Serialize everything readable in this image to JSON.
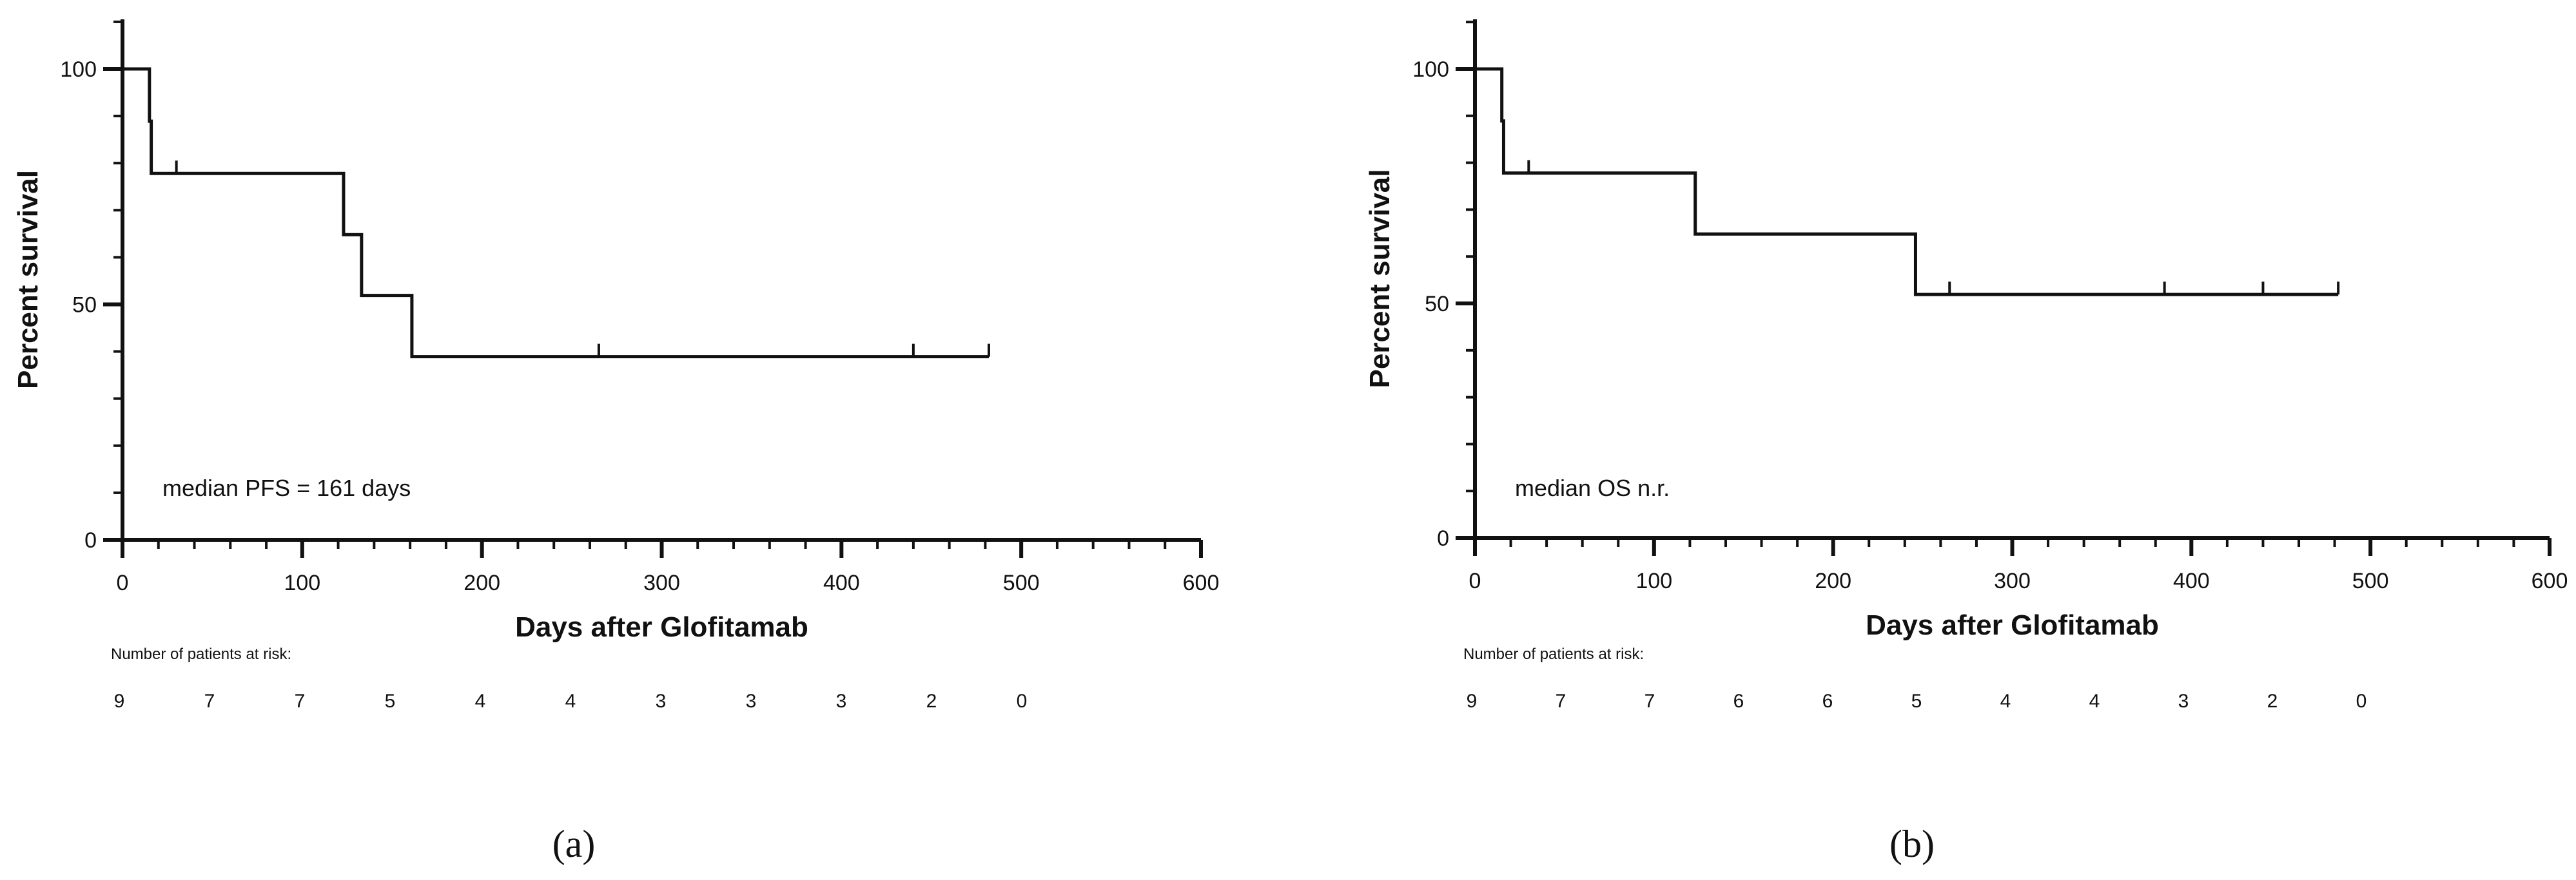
{
  "chart_data": [
    {
      "type": "line",
      "panel_label": "(a)",
      "xlabel": "Days after Glofitamab",
      "ylabel": "Percent survival",
      "xlim": [
        0,
        600
      ],
      "ylim": [
        0,
        100
      ],
      "x_ticks": [
        "0",
        "100",
        "200",
        "300",
        "400",
        "500",
        "600"
      ],
      "y_ticks": [
        "0",
        "50",
        "100"
      ],
      "annotation": "median PFS = 161 days",
      "risk_title": "Number of patients at risk:",
      "risk_counts": [
        "9",
        "7",
        "7",
        "5",
        "4",
        "4",
        "3",
        "3",
        "3",
        "2",
        "0"
      ],
      "series": [
        {
          "steps": [
            [
              0,
              100
            ],
            [
              15,
              88.9
            ],
            [
              16,
              77.8
            ],
            [
              123,
              64.8
            ],
            [
              133,
              51.9
            ],
            [
              161,
              38.9
            ]
          ],
          "end_x": 482,
          "censored": [
            [
              30,
              77.8
            ],
            [
              265,
              38.9
            ],
            [
              440,
              38.9
            ],
            [
              482,
              38.9
            ]
          ]
        }
      ]
    },
    {
      "type": "line",
      "panel_label": "(b)",
      "xlabel": "Days after Glofitamab",
      "ylabel": "Percent survival",
      "xlim": [
        0,
        600
      ],
      "ylim": [
        0,
        100
      ],
      "x_ticks": [
        "0",
        "100",
        "200",
        "300",
        "400",
        "500",
        "600"
      ],
      "y_ticks": [
        "0",
        "50",
        "100"
      ],
      "annotation": "median OS n.r.",
      "risk_title": "Number of patients at risk:",
      "risk_counts": [
        "9",
        "7",
        "7",
        "6",
        "6",
        "5",
        "4",
        "4",
        "3",
        "2",
        "0"
      ],
      "series": [
        {
          "steps": [
            [
              0,
              100
            ],
            [
              15,
              88.9
            ],
            [
              16,
              77.8
            ],
            [
              123,
              64.8
            ],
            [
              246,
              51.9
            ]
          ],
          "end_x": 482,
          "censored": [
            [
              30,
              77.8
            ],
            [
              265,
              51.9
            ],
            [
              385,
              51.9
            ],
            [
              440,
              51.9
            ],
            [
              482,
              51.9
            ]
          ]
        }
      ]
    }
  ]
}
